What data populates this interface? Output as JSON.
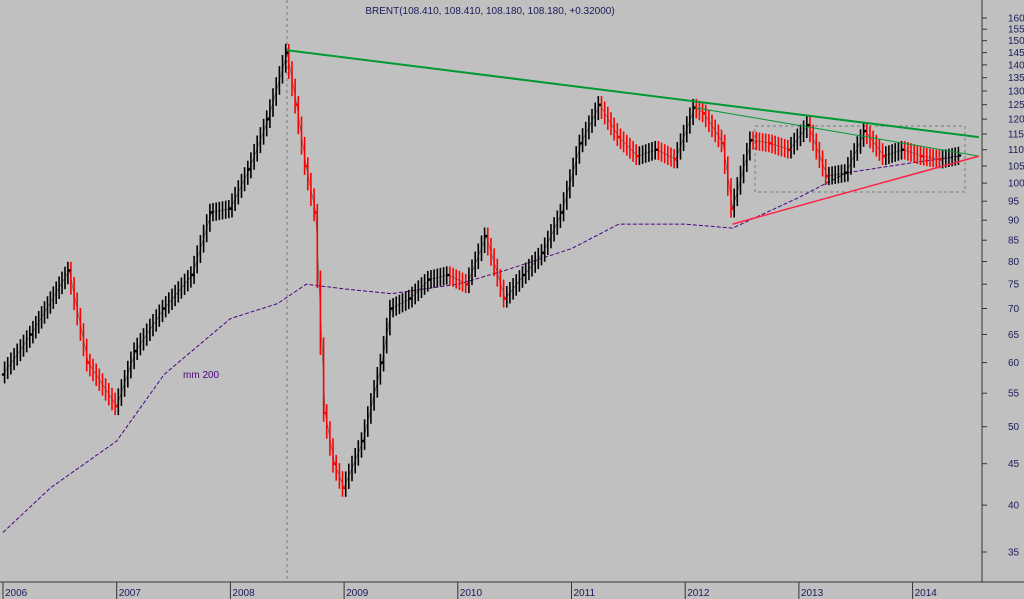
{
  "chart_data": {
    "type": "line",
    "title": "BRENT(108.410, 108.410, 108.180, 108.180, +0.32000)",
    "annotation": "mm 200",
    "yscale": "log",
    "ylim": [
      32,
      170
    ],
    "y_ticks": [
      35,
      40,
      45,
      50,
      55,
      60,
      65,
      70,
      75,
      80,
      85,
      90,
      95,
      100,
      105,
      110,
      115,
      120,
      125,
      130,
      135,
      140,
      145,
      150,
      155,
      160
    ],
    "x_ticks": [
      "2006",
      "2007",
      "2008",
      "2009",
      "2010",
      "2011",
      "2012",
      "2013",
      "2014"
    ],
    "grid": false,
    "colors": {
      "up": "#000000",
      "down": "#ff0000",
      "ma": "#4b0082",
      "trend_upper": "#009933",
      "trend_lower": "#ff2244",
      "text": "#1a1a5a",
      "background": "#c0c0c0",
      "axis_panel": "#c0c0c0"
    },
    "series": [
      {
        "name": "BRENT",
        "x": [
          "2006-01",
          "2006-04",
          "2006-08",
          "2006-10",
          "2007-01",
          "2007-03",
          "2007-06",
          "2007-09",
          "2007-11",
          "2008-01",
          "2008-03",
          "2008-05",
          "2008-07",
          "2008-08",
          "2008-09",
          "2008-10",
          "2008-11",
          "2008-12",
          "2009-01",
          "2009-03",
          "2009-05",
          "2009-06",
          "2009-08",
          "2009-10",
          "2009-12",
          "2010-02",
          "2010-04",
          "2010-06",
          "2010-08",
          "2010-10",
          "2010-12",
          "2011-02",
          "2011-04",
          "2011-06",
          "2011-08",
          "2011-10",
          "2011-12",
          "2012-02",
          "2012-03",
          "2012-05",
          "2012-06",
          "2012-08",
          "2012-10",
          "2012-12",
          "2013-02",
          "2013-04",
          "2013-06",
          "2013-08",
          "2013-10",
          "2013-12",
          "2014-02",
          "2014-04",
          "2014-06"
        ],
        "values": [
          58,
          65,
          78,
          60,
          53,
          62,
          70,
          77,
          92,
          93,
          104,
          120,
          145,
          125,
          105,
          92,
          52,
          45,
          42,
          48,
          60,
          70,
          72,
          76,
          77,
          75,
          86,
          72,
          77,
          82,
          92,
          112,
          125,
          114,
          108,
          110,
          107,
          124,
          122,
          112,
          93,
          113,
          112,
          110,
          118,
          102,
          103,
          116,
          108,
          110,
          108,
          107,
          108.2
        ]
      },
      {
        "name": "mm 200",
        "x": [
          "2006-01",
          "2006-06",
          "2007-01",
          "2007-06",
          "2008-01",
          "2008-06",
          "2008-09",
          "2009-01",
          "2009-06",
          "2010-01",
          "2010-06",
          "2011-01",
          "2011-06",
          "2012-01",
          "2012-06",
          "2013-01",
          "2013-06",
          "2014-01",
          "2014-06"
        ],
        "values": [
          37,
          42,
          48,
          58,
          68,
          71,
          75,
          74,
          73,
          75,
          78,
          83,
          89,
          89,
          88,
          96,
          103,
          106,
          108
        ]
      }
    ],
    "trendlines": [
      {
        "name": "upper",
        "from": [
          "2008-07",
          146
        ],
        "to": [
          "2014-08",
          114
        ]
      },
      {
        "name": "upper-thin",
        "from": [
          "2012-02",
          124
        ],
        "to": [
          "2014-08",
          108
        ]
      },
      {
        "name": "lower",
        "from": [
          "2012-06",
          89
        ],
        "to": [
          "2014-08",
          108
        ]
      }
    ]
  }
}
